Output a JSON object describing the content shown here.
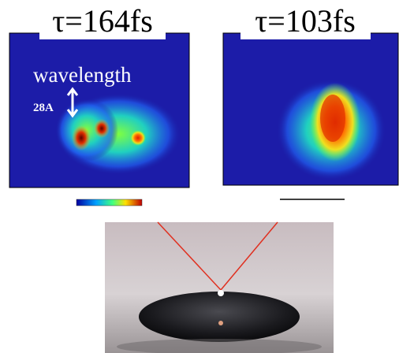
{
  "panels": [
    {
      "label": "τ=164fs",
      "annotation": {
        "title": "wavelength",
        "scale": "28A"
      }
    },
    {
      "label": "τ=103fs"
    }
  ]
}
